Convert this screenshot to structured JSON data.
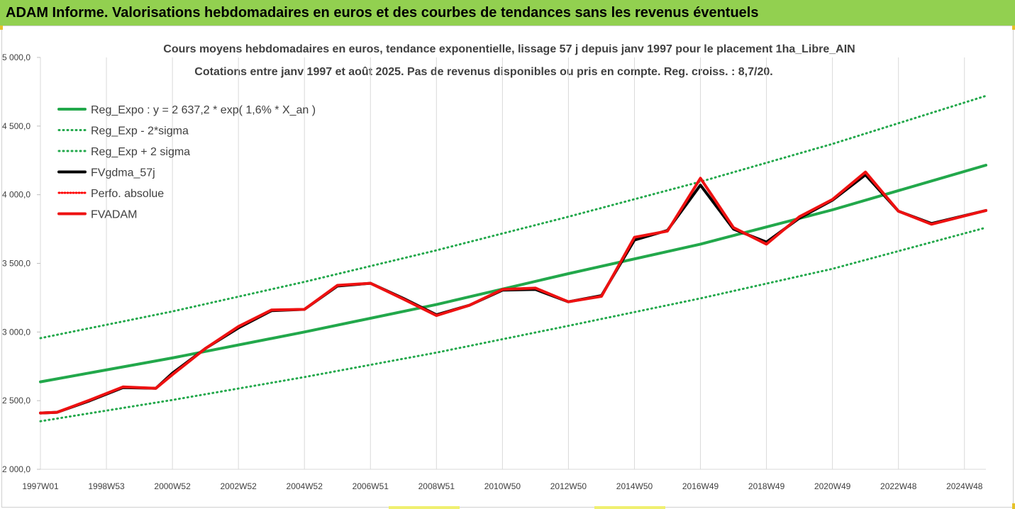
{
  "banner": {
    "title": "ADAM Informe. Valorisations hebdomadaires en euros et des courbes de tendances sans les revenus éventuels"
  },
  "chart_data": {
    "type": "line",
    "title": "Cours moyens hebdomadaires en euros, tendance exponentielle, lissage 57 j depuis janv 1997 pour le placement 1ha_Libre_AIN",
    "subtitle": "Cotations entre janv 1997 et août 2025.  Pas de revenus disponibles ou pris en compte. Reg. croiss. : 8,7/20.",
    "xlabel": "",
    "ylabel": "",
    "ylim": [
      2000,
      5000
    ],
    "y_ticks": [
      2000,
      2500,
      3000,
      3500,
      4000,
      4500,
      5000
    ],
    "y_tick_labels": [
      "2 000,0",
      "2 500,0",
      "3 000,0",
      "3 500,0",
      "4 000,0",
      "4 500,0",
      "5 000,0"
    ],
    "xlim": [
      1997.0,
      2025.65
    ],
    "x_ticks": [
      {
        "label": "1997W01",
        "x": 1997.0
      },
      {
        "label": "1998W53",
        "x": 1999.0
      },
      {
        "label": "2000W52",
        "x": 2001.0
      },
      {
        "label": "2002W52",
        "x": 2003.0
      },
      {
        "label": "2004W52",
        "x": 2005.0
      },
      {
        "label": "2006W51",
        "x": 2007.0
      },
      {
        "label": "2008W51",
        "x": 2009.0
      },
      {
        "label": "2010W50",
        "x": 2011.0
      },
      {
        "label": "2012W50",
        "x": 2013.0
      },
      {
        "label": "2014W50",
        "x": 2015.0
      },
      {
        "label": "2016W49",
        "x": 2017.0
      },
      {
        "label": "2018W49",
        "x": 2019.0
      },
      {
        "label": "2020W49",
        "x": 2021.0
      },
      {
        "label": "2022W48",
        "x": 2023.0
      },
      {
        "label": "2024W48",
        "x": 2025.0
      }
    ],
    "grid": "vertical",
    "legend_position": "top-left",
    "series": [
      {
        "name": "Reg_Expo : y = 2 637,2 * exp( 1,6% *  X_an )",
        "color": "#22a84b",
        "width": 4,
        "dash": "",
        "x": [
          1997.0,
          2001.0,
          2005.0,
          2009.0,
          2013.0,
          2017.0,
          2021.0,
          2025.65
        ],
        "y": [
          2637,
          2811,
          3000,
          3200,
          3425,
          3640,
          3890,
          4215
        ]
      },
      {
        "name": "Reg_Exp - 2*sigma",
        "color": "#22a84b",
        "width": 3,
        "dash": "1 5",
        "x": [
          1997.0,
          2001.0,
          2005.0,
          2009.0,
          2013.0,
          2017.0,
          2021.0,
          2025.65
        ],
        "y": [
          2350,
          2505,
          2672,
          2850,
          3045,
          3245,
          3460,
          3760
        ]
      },
      {
        "name": "Reg_Exp + 2 sigma",
        "color": "#22a84b",
        "width": 3,
        "dash": "1 5",
        "x": [
          1997.0,
          2001.0,
          2005.0,
          2009.0,
          2013.0,
          2017.0,
          2021.0,
          2025.65
        ],
        "y": [
          2955,
          3150,
          3365,
          3595,
          3840,
          4095,
          4370,
          4720
        ]
      },
      {
        "name": "FVgdma_57j",
        "color": "#000000",
        "width": 4,
        "dash": "",
        "x": [
          1997.0,
          1997.5,
          1998.5,
          1999.5,
          2000.5,
          2001.0,
          2002.0,
          2003.0,
          2004.0,
          2005.0,
          2006.0,
          2007.0,
          2008.0,
          2009.0,
          2010.0,
          2011.0,
          2012.0,
          2013.0,
          2014.0,
          2015.0,
          2016.0,
          2017.0,
          2018.0,
          2019.0,
          2020.0,
          2021.0,
          2022.0,
          2023.0,
          2024.0,
          2025.65
        ],
        "y": [
          2410,
          2415,
          2500,
          2595,
          2590,
          2700,
          2880,
          3030,
          3155,
          3165,
          3335,
          3355,
          3245,
          3125,
          3195,
          3305,
          3310,
          3220,
          3265,
          3670,
          3740,
          4070,
          3750,
          3655,
          3830,
          3960,
          4145,
          3880,
          3790,
          3885
        ]
      },
      {
        "name": "Perfo. absolue",
        "color": "#ff0000",
        "width": 3,
        "dash": "1 3",
        "x": [],
        "y": []
      },
      {
        "name": "FVADAM",
        "color": "#ee1111",
        "width": 4,
        "dash": "",
        "x": [
          1997.0,
          1997.5,
          1998.5,
          1999.5,
          2000.5,
          2001.0,
          2002.0,
          2003.0,
          2004.0,
          2005.0,
          2006.0,
          2007.0,
          2008.0,
          2009.0,
          2010.0,
          2011.0,
          2012.0,
          2013.0,
          2014.0,
          2015.0,
          2016.0,
          2017.0,
          2018.0,
          2019.0,
          2020.0,
          2021.0,
          2022.0,
          2023.0,
          2024.0,
          2025.65
        ],
        "y": [
          2410,
          2415,
          2505,
          2600,
          2590,
          2690,
          2880,
          3040,
          3160,
          3165,
          3340,
          3355,
          3240,
          3120,
          3195,
          3310,
          3320,
          3220,
          3260,
          3690,
          3735,
          4120,
          3760,
          3640,
          3840,
          3965,
          4165,
          3880,
          3785,
          3885
        ]
      }
    ]
  }
}
